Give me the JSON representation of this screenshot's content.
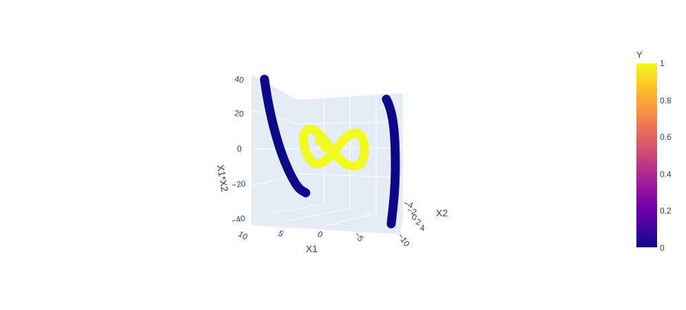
{
  "chart_data": {
    "type": "scatter3d",
    "title": "",
    "axes": {
      "x": {
        "label": "X1",
        "range": [
          -10,
          10
        ],
        "ticks": [
          "10",
          "5",
          "0",
          "−5",
          "−10"
        ]
      },
      "y": {
        "label": "X2",
        "range": [
          -5,
          5
        ],
        "ticks": [
          "−4",
          "−2",
          "0",
          "2",
          "4"
        ]
      },
      "z": {
        "label": "X1*X2",
        "range": [
          -45,
          45
        ],
        "ticks": [
          "40",
          "20",
          "0",
          "−20",
          "−40"
        ]
      }
    },
    "colorbar": {
      "title": "Y",
      "ticks": [
        "1",
        "0.8",
        "0.6",
        "0.4",
        "0.2",
        "0"
      ],
      "colorscale": [
        "#0d0887",
        "#46039f",
        "#7201a8",
        "#9c179e",
        "#bd3786",
        "#d8576b",
        "#ed7953",
        "#fb9f3a",
        "#fdca26",
        "#f0f921"
      ]
    },
    "series": [
      {
        "class": 0,
        "color": "#0d0887",
        "description_points": [
          {
            "x": 9.0,
            "y": -4.8,
            "z": 43
          },
          {
            "x": 8.0,
            "y": -2.0,
            "z": 16
          },
          {
            "x": 7.0,
            "y": 0.5,
            "z": -4
          },
          {
            "x": 5.5,
            "y": 4.8,
            "z": -26
          }
        ]
      },
      {
        "class": 0,
        "color": "#0d0887",
        "description_points": [
          {
            "x": -9.0,
            "y": -3.5,
            "z": 32
          },
          {
            "x": -10.0,
            "y": 0.0,
            "z": 0
          },
          {
            "x": -9.5,
            "y": 3.0,
            "z": -28
          },
          {
            "x": -9.0,
            "y": 4.5,
            "z": -40
          }
        ]
      },
      {
        "class": 1,
        "color": "#f0f921",
        "shape": "figure-eight",
        "description_points": [
          {
            "x": 2.0,
            "y": 0.0,
            "z": 12
          },
          {
            "x": 0.0,
            "y": 0.0,
            "z": 0
          },
          {
            "x": -3.0,
            "y": 0.0,
            "z": 10
          },
          {
            "x": -2.5,
            "y": 0.0,
            "z": -12
          }
        ]
      }
    ],
    "grid": true,
    "legend": "colorbar-right"
  }
}
